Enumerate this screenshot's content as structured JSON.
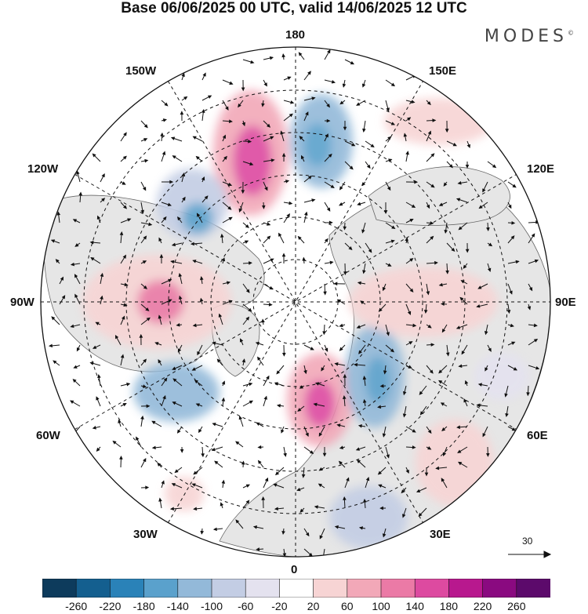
{
  "title": "Base 06/06/2025 00 UTC, valid 14/06/2025 12 UTC",
  "brand": "MODES",
  "brand_mark": "©",
  "longitude_labels": {
    "top": "180",
    "bottom": "0",
    "left": "90W",
    "right": "90E",
    "upper_left_1": "150W",
    "upper_left_2": "120W",
    "upper_right_1": "150E",
    "upper_right_2": "120E",
    "lower_left_1": "60W",
    "lower_left_2": "30W",
    "lower_right_1": "60E",
    "lower_right_2": "30E"
  },
  "reference_vector": "30",
  "colorbar": {
    "ticks": [
      "-260",
      "-220",
      "-180",
      "-140",
      "-100",
      "-60",
      "-20",
      "20",
      "60",
      "100",
      "140",
      "180",
      "220",
      "260"
    ],
    "colors": [
      "#0d3b5c",
      "#145f8f",
      "#2a82b8",
      "#5aa1cc",
      "#93b9d9",
      "#c3cde4",
      "#e4e2ef",
      "#ffffff",
      "#f7d4d4",
      "#f2a8b8",
      "#eb7aa6",
      "#dd4aa0",
      "#b8188e",
      "#8a0a80",
      "#5c0a6b"
    ]
  },
  "map_colors": {
    "land": "#e8e8e8",
    "ocean": "#ffffff",
    "grid": "#111111",
    "coast": "#555555"
  }
}
